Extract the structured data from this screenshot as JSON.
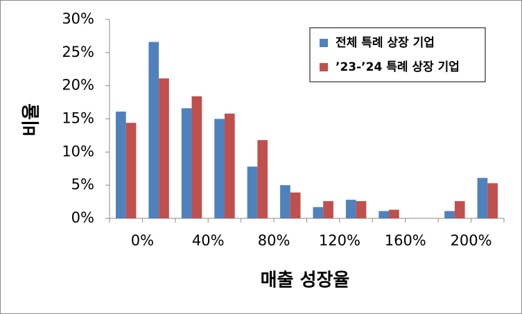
{
  "chart_data": {
    "type": "histogram",
    "xlabel": "매출 성장율",
    "ylabel": "비율",
    "bins": [
      -20,
      0,
      20,
      40,
      60,
      80,
      100,
      120,
      140,
      160,
      180,
      200,
      220
    ],
    "series": [
      {
        "name": "전체 특례 상장 기업",
        "color": "#4f81bd",
        "values": [
          16.1,
          26.6,
          16.6,
          15.0,
          7.8,
          5.0,
          1.7,
          2.8,
          1.1,
          0,
          1.1,
          6.1
        ]
      },
      {
        "name": "’23-’24 특례 상장 기업",
        "color": "#c0504d",
        "values": [
          14.4,
          21.1,
          18.4,
          15.8,
          11.8,
          3.9,
          2.6,
          2.6,
          1.3,
          0,
          2.6,
          5.3
        ]
      }
    ],
    "xlim": [
      -20,
      220
    ],
    "xticks": [
      {
        "value": 0,
        "label": "0%"
      },
      {
        "value": 40,
        "label": "40%"
      },
      {
        "value": 80,
        "label": "80%"
      },
      {
        "value": 120,
        "label": "120%"
      },
      {
        "value": 160,
        "label": "160%"
      },
      {
        "value": 200,
        "label": "200%"
      }
    ],
    "ylim": [
      0,
      30
    ],
    "yticks": [
      {
        "value": 0,
        "label": "0%"
      },
      {
        "value": 5,
        "label": "5%"
      },
      {
        "value": 10,
        "label": "10%"
      },
      {
        "value": 15,
        "label": "15%"
      },
      {
        "value": 20,
        "label": "20%"
      },
      {
        "value": 25,
        "label": "25%"
      },
      {
        "value": 30,
        "label": "30%"
      }
    ],
    "grid": false,
    "legend": "upper right"
  }
}
